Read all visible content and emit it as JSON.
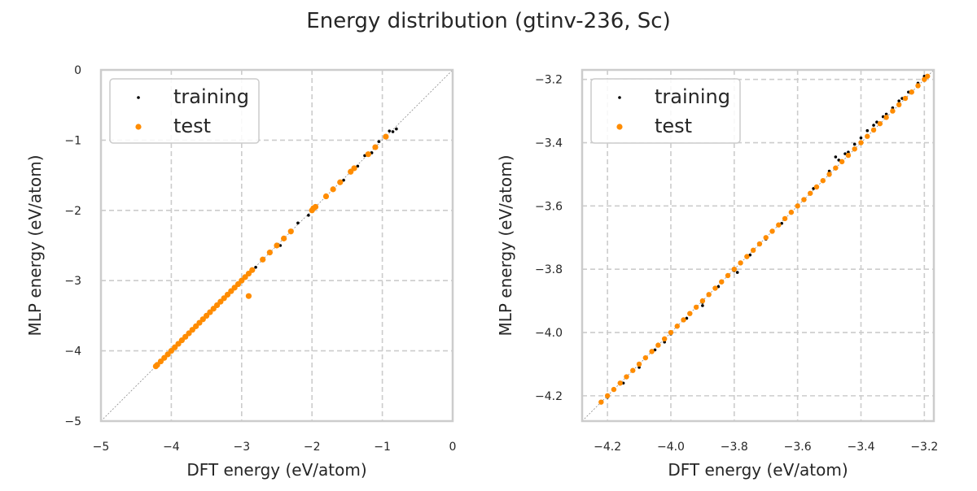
{
  "figure": {
    "title": "Energy distribution (gtinv-236, Sc)"
  },
  "colors": {
    "training": "#000000",
    "test": "#ff8c00",
    "grid": "#cccccc",
    "frame": "#cccccc",
    "diagonal": "#8c8c8c"
  },
  "chart_data": [
    {
      "type": "scatter",
      "title": "",
      "xlabel": "DFT energy (eV/atom)",
      "ylabel": "MLP energy (eV/atom)",
      "xlim": [
        -5,
        0
      ],
      "ylim": [
        -5,
        0
      ],
      "xticks": [
        -5,
        -4,
        -3,
        -2,
        -1,
        0
      ],
      "yticks": [
        -5,
        -4,
        -3,
        -2,
        -1,
        0
      ],
      "xtick_labels": [
        "−5",
        "−4",
        "−3",
        "−2",
        "−1",
        "0"
      ],
      "ytick_labels": [
        "−5",
        "−4",
        "−3",
        "−2",
        "−1",
        "0"
      ],
      "grid": true,
      "legend_position": "top-left",
      "diagonal": true,
      "series": [
        {
          "name": "training",
          "color": "#000000",
          "x": [
            -4.2,
            -4.1,
            -4.0,
            -3.9,
            -3.8,
            -3.7,
            -3.6,
            -3.5,
            -3.4,
            -3.3,
            -3.2,
            -3.1,
            -3.0,
            -2.9,
            -2.8,
            -2.7,
            -2.6,
            -2.5,
            -2.45,
            -2.3,
            -2.2,
            -2.05,
            -1.95,
            -1.8,
            -1.7,
            -1.55,
            -1.45,
            -1.35,
            -1.25,
            -1.15,
            -1.05,
            -0.95,
            -0.9,
            -0.85,
            -0.8
          ],
          "y": [
            -4.2,
            -4.11,
            -3.99,
            -3.91,
            -3.79,
            -3.71,
            -3.6,
            -3.51,
            -3.39,
            -3.3,
            -3.21,
            -3.09,
            -3.01,
            -2.89,
            -2.81,
            -2.69,
            -2.61,
            -2.48,
            -2.5,
            -2.31,
            -2.18,
            -2.07,
            -1.93,
            -1.82,
            -1.68,
            -1.57,
            -1.43,
            -1.37,
            -1.22,
            -1.18,
            -1.02,
            -0.97,
            -0.87,
            -0.88,
            -0.84
          ]
        },
        {
          "name": "test",
          "color": "#ff8c00",
          "x": [
            -4.22,
            -4.2,
            -4.15,
            -4.1,
            -4.05,
            -4.0,
            -3.95,
            -3.9,
            -3.85,
            -3.8,
            -3.75,
            -3.7,
            -3.65,
            -3.6,
            -3.55,
            -3.5,
            -3.45,
            -3.4,
            -3.35,
            -3.3,
            -3.25,
            -3.2,
            -3.15,
            -3.1,
            -3.05,
            -3.0,
            -2.95,
            -2.9,
            -2.85,
            -2.7,
            -2.6,
            -2.5,
            -2.4,
            -2.3,
            -2.0,
            -1.98,
            -1.95,
            -1.8,
            -1.7,
            -1.6,
            -1.45,
            -1.4,
            -1.2,
            -1.1,
            -0.95,
            -2.9
          ],
          "y": [
            -4.22,
            -4.2,
            -4.15,
            -4.1,
            -4.05,
            -4.0,
            -3.95,
            -3.9,
            -3.85,
            -3.8,
            -3.75,
            -3.7,
            -3.65,
            -3.6,
            -3.55,
            -3.5,
            -3.45,
            -3.4,
            -3.35,
            -3.3,
            -3.25,
            -3.2,
            -3.15,
            -3.1,
            -3.05,
            -3.0,
            -2.95,
            -2.9,
            -2.85,
            -2.7,
            -2.6,
            -2.5,
            -2.4,
            -2.3,
            -2.0,
            -1.97,
            -1.95,
            -1.8,
            -1.7,
            -1.6,
            -1.45,
            -1.4,
            -1.2,
            -1.1,
            -0.95,
            -3.22
          ]
        }
      ]
    },
    {
      "type": "scatter",
      "title": "",
      "xlabel": "DFT energy (eV/atom)",
      "ylabel": "MLP energy (eV/atom)",
      "xlim": [
        -4.28,
        -3.17
      ],
      "ylim": [
        -4.28,
        -3.17
      ],
      "xticks": [
        -4.2,
        -4.0,
        -3.8,
        -3.6,
        -3.4,
        -3.2
      ],
      "yticks": [
        -4.2,
        -4.0,
        -3.8,
        -3.6,
        -3.4,
        -3.2
      ],
      "xtick_labels": [
        "−4.2",
        "−4.0",
        "−3.8",
        "−3.6",
        "−3.4",
        "−3.2"
      ],
      "ytick_labels": [
        "−4.2",
        "−4.0",
        "−3.8",
        "−3.6",
        "−3.4",
        "−3.2"
      ],
      "grid": true,
      "legend_position": "top-left",
      "diagonal": true,
      "series": [
        {
          "name": "training",
          "color": "#000000",
          "x": [
            -4.2,
            -4.15,
            -4.1,
            -4.05,
            -4.0,
            -3.95,
            -3.9,
            -3.85,
            -3.8,
            -3.75,
            -3.7,
            -3.65,
            -3.6,
            -3.55,
            -3.5,
            -3.47,
            -3.45,
            -3.42,
            -3.4,
            -3.38,
            -3.35,
            -3.32,
            -3.3,
            -3.28,
            -3.25,
            -3.22,
            -3.2,
            -3.48,
            -3.44,
            -3.36,
            -3.33,
            -3.27,
            -3.9,
            -4.02,
            -3.79
          ],
          "y": [
            -4.205,
            -4.16,
            -4.11,
            -4.055,
            -4.005,
            -3.955,
            -3.905,
            -3.855,
            -3.805,
            -3.755,
            -3.705,
            -3.655,
            -3.6,
            -3.545,
            -3.49,
            -3.455,
            -3.435,
            -3.405,
            -3.385,
            -3.362,
            -3.335,
            -3.31,
            -3.29,
            -3.268,
            -3.24,
            -3.212,
            -3.19,
            -3.445,
            -3.43,
            -3.345,
            -3.318,
            -3.26,
            -3.915,
            -4.03,
            -3.81
          ]
        },
        {
          "name": "test",
          "color": "#ff8c00",
          "x": [
            -4.22,
            -4.2,
            -4.18,
            -4.16,
            -4.14,
            -4.12,
            -4.1,
            -4.08,
            -4.06,
            -4.04,
            -4.02,
            -4.0,
            -3.98,
            -3.96,
            -3.94,
            -3.92,
            -3.9,
            -3.88,
            -3.86,
            -3.84,
            -3.82,
            -3.8,
            -3.78,
            -3.76,
            -3.74,
            -3.72,
            -3.7,
            -3.68,
            -3.66,
            -3.64,
            -3.62,
            -3.6,
            -3.58,
            -3.56,
            -3.54,
            -3.52,
            -3.5,
            -3.48,
            -3.46,
            -3.44,
            -3.42,
            -3.4,
            -3.38,
            -3.36,
            -3.34,
            -3.32,
            -3.3,
            -3.28,
            -3.26,
            -3.24,
            -3.22,
            -3.2,
            -3.19
          ],
          "y": [
            -4.22,
            -4.2,
            -4.18,
            -4.16,
            -4.14,
            -4.12,
            -4.1,
            -4.08,
            -4.06,
            -4.04,
            -4.02,
            -4.0,
            -3.98,
            -3.96,
            -3.94,
            -3.92,
            -3.9,
            -3.88,
            -3.86,
            -3.84,
            -3.82,
            -3.8,
            -3.78,
            -3.76,
            -3.74,
            -3.72,
            -3.7,
            -3.68,
            -3.66,
            -3.64,
            -3.62,
            -3.6,
            -3.58,
            -3.56,
            -3.54,
            -3.52,
            -3.5,
            -3.48,
            -3.46,
            -3.44,
            -3.42,
            -3.4,
            -3.38,
            -3.36,
            -3.34,
            -3.32,
            -3.3,
            -3.28,
            -3.26,
            -3.24,
            -3.22,
            -3.2,
            -3.19
          ]
        }
      ]
    }
  ]
}
